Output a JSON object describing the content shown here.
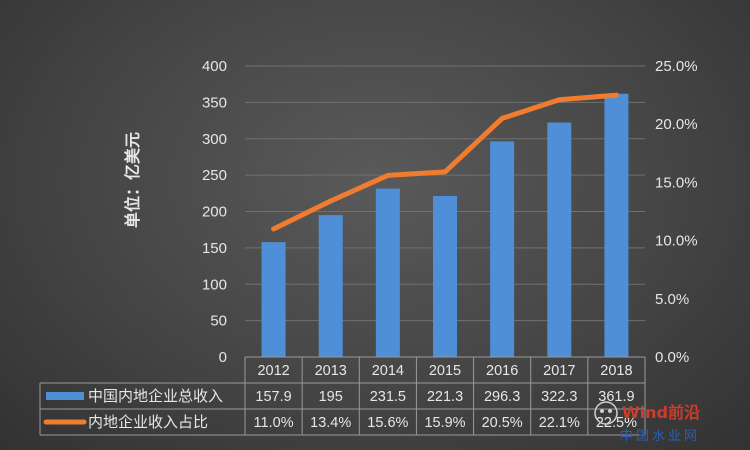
{
  "chart_data": {
    "type": "bar",
    "categories": [
      "2012",
      "2013",
      "2014",
      "2015",
      "2016",
      "2017",
      "2018"
    ],
    "ylabel": "单位：亿美元",
    "ylim": [
      0,
      400
    ],
    "yticks": [
      "0",
      "50",
      "100",
      "150",
      "200",
      "250",
      "300",
      "350",
      "400"
    ],
    "y2lim": [
      0,
      25
    ],
    "y2ticks": [
      "0.0%",
      "5.0%",
      "10.0%",
      "15.0%",
      "20.0%",
      "25.0%"
    ],
    "grid": true,
    "legend": "table",
    "series": [
      {
        "name": "中国内地企业总收入",
        "type": "bar",
        "axis": "left",
        "color": "#4f8fd8",
        "values": [
          157.9,
          195,
          231.5,
          221.3,
          296.3,
          322.3,
          361.9
        ],
        "labels": [
          "157.9",
          "195",
          "231.5",
          "221.3",
          "296.3",
          "322.3",
          "361.9"
        ]
      },
      {
        "name": "内地企业收入占比",
        "type": "line",
        "axis": "right",
        "color": "#f07c2f",
        "values": [
          11.0,
          13.4,
          15.6,
          15.9,
          20.5,
          22.1,
          22.5
        ],
        "labels": [
          "11.0%",
          "13.4%",
          "15.6%",
          "15.9%",
          "20.5%",
          "22.1%",
          "22.5%"
        ]
      }
    ]
  },
  "watermark": {
    "line1": "Wind前沿",
    "line2": "中国水业网"
  }
}
